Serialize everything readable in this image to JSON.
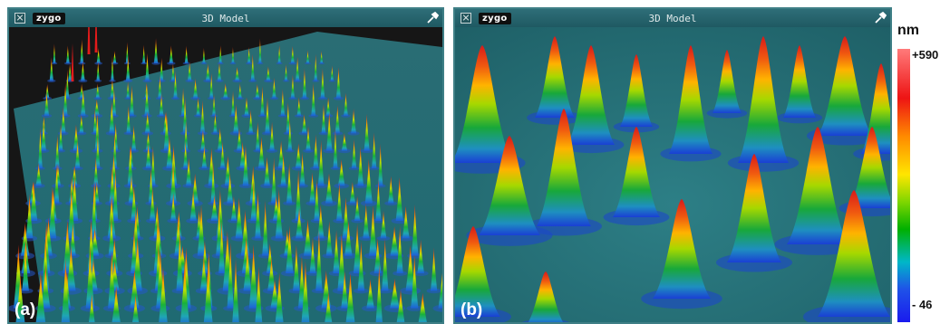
{
  "windows": [
    {
      "logo": "zygo",
      "title": "3D Model",
      "label": "(a)"
    },
    {
      "logo": "zygo",
      "title": "3D Model",
      "label": "(b)"
    }
  ],
  "legend": {
    "unit": "nm",
    "max": "+590",
    "min": "- 46",
    "colors": [
      "#ff7a7a",
      "#ee1414",
      "#ff8a00",
      "#ffe600",
      "#00b000",
      "#00b7c8",
      "#1a1aee"
    ]
  },
  "colors": {
    "titlebar": "#2e6e78",
    "surface": "#2b7a80",
    "background": "#1d1d1d"
  },
  "icons": [
    "close-icon",
    "zygo-logo",
    "wrench-icon"
  ]
}
